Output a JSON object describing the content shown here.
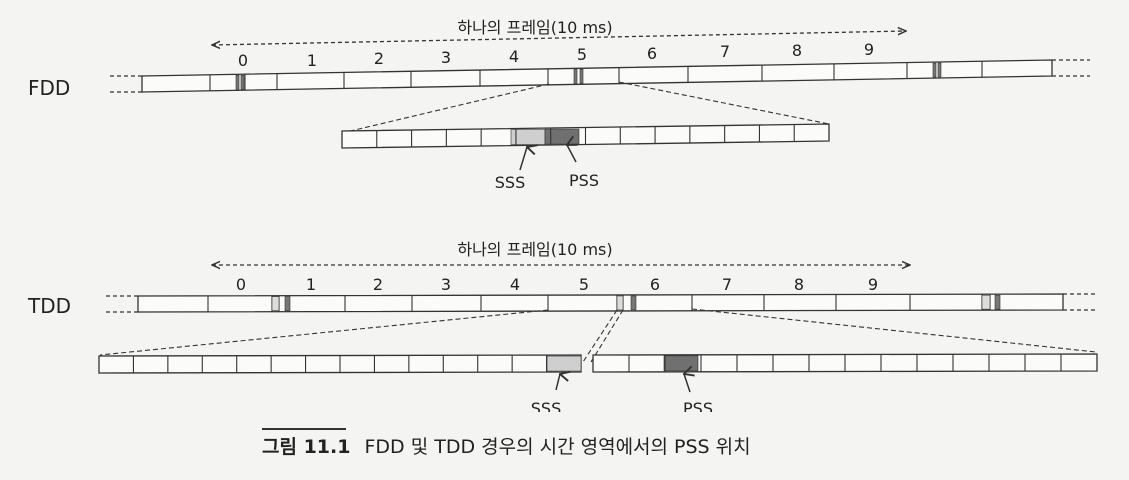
{
  "fdd": {
    "label": "FDD",
    "frame_label": "하나의 프레임(10 ms)",
    "subframe_numbers": [
      "0",
      "1",
      "2",
      "3",
      "4",
      "5",
      "6",
      "7",
      "8",
      "9"
    ],
    "sss_label": "SSS",
    "pss_label": "PSS"
  },
  "tdd": {
    "label": "TDD",
    "frame_label": "하나의 프레임(10 ms)",
    "subframe_numbers": [
      "0",
      "1",
      "2",
      "3",
      "4",
      "5",
      "6",
      "7",
      "8",
      "9"
    ],
    "sss_label": "SSS",
    "pss_label": "PSS"
  },
  "caption": {
    "number": "그림 11.1",
    "text": "FDD 및 TDD 경우의 시간 영역에서의 PSS 위치"
  },
  "colors": {
    "line": "#333333",
    "sss_fill": "#cfcfcf",
    "pss_fill": "#707070",
    "marker_fill": "#777777"
  }
}
